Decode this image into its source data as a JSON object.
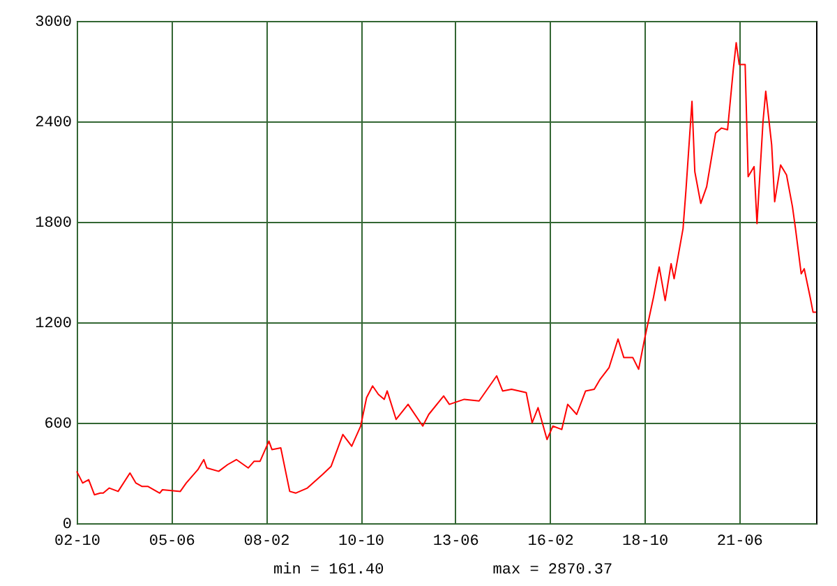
{
  "chart_data": {
    "type": "line",
    "x": [
      "2002-10",
      "2002-12",
      "2003-02",
      "2003-04",
      "2003-06",
      "2003-07",
      "2003-09",
      "2003-12",
      "2004-04",
      "2004-06",
      "2004-08",
      "2004-10",
      "2005-02",
      "2005-03",
      "2005-09",
      "2005-11",
      "2006-03",
      "2006-05",
      "2006-06",
      "2006-10",
      "2007-01",
      "2007-04",
      "2007-08",
      "2007-10",
      "2007-12",
      "2008-03",
      "2008-04",
      "2008-07",
      "2008-10",
      "2008-12",
      "2009-04",
      "2009-09",
      "2009-12",
      "2010-04",
      "2010-07",
      "2010-10",
      "2010-12",
      "2011-02",
      "2011-04",
      "2011-06",
      "2011-07",
      "2011-10",
      "2012-02",
      "2012-07",
      "2012-09",
      "2013-02",
      "2013-04",
      "2013-09",
      "2014-02",
      "2014-08",
      "2014-10",
      "2015-01",
      "2015-06",
      "2015-08",
      "2015-10",
      "2016-01",
      "2016-03",
      "2016-06",
      "2016-08",
      "2016-11",
      "2017-02",
      "2017-05",
      "2017-07",
      "2017-10",
      "2018-01",
      "2018-03",
      "2018-06",
      "2018-08",
      "2018-10",
      "2019-01",
      "2019-03",
      "2019-05",
      "2019-07",
      "2019-08",
      "2019-11",
      "2019-12",
      "2020-02",
      "2020-03",
      "2020-05",
      "2020-07",
      "2020-10",
      "2020-12",
      "2021-02",
      "2021-04",
      "2021-05",
      "2021-06",
      "2021-08",
      "2021-09",
      "2021-11",
      "2021-12",
      "2022-02",
      "2022-03",
      "2022-05",
      "2022-06",
      "2022-08",
      "2022-10",
      "2022-12",
      "2023-01",
      "2023-03",
      "2023-04",
      "2023-06",
      "2023-07",
      "2023-08"
    ],
    "series": [
      {
        "color": "#ff0000",
        "values": [
          310,
          240,
          260,
          170,
          180,
          180,
          210,
          190,
          300,
          240,
          220,
          220,
          180,
          200,
          190,
          240,
          320,
          380,
          330,
          310,
          350,
          380,
          330,
          370,
          370,
          490,
          440,
          450,
          190,
          180,
          210,
          290,
          340,
          530,
          460,
          580,
          750,
          820,
          770,
          740,
          790,
          620,
          710,
          580,
          650,
          760,
          710,
          740,
          730,
          880,
          790,
          800,
          780,
          600,
          690,
          500,
          580,
          560,
          710,
          650,
          790,
          800,
          860,
          930,
          1100,
          990,
          990,
          920,
          1100,
          1350,
          1530,
          1330,
          1550,
          1460,
          1760,
          1990,
          2520,
          2100,
          1910,
          2010,
          2330,
          2360,
          2350,
          2710,
          2870,
          2740,
          2740,
          2070,
          2130,
          1790,
          2400,
          2580,
          2260,
          1920,
          2140,
          2080,
          1890,
          1760,
          1490,
          1520,
          1350,
          1260,
          1260
        ]
      }
    ],
    "xlim": [
      "2002-10",
      "2023-08"
    ],
    "xticks": [
      {
        "value": "2002-10",
        "label": "02-10"
      },
      {
        "value": "2005-06",
        "label": "05-06"
      },
      {
        "value": "2008-02",
        "label": "08-02"
      },
      {
        "value": "2010-10",
        "label": "10-10"
      },
      {
        "value": "2013-06",
        "label": "13-06"
      },
      {
        "value": "2016-02",
        "label": "16-02"
      },
      {
        "value": "2018-10",
        "label": "18-10"
      },
      {
        "value": "2021-06",
        "label": "21-06"
      }
    ],
    "ylim": [
      0,
      3000
    ],
    "yticks": [
      0,
      600,
      1200,
      1800,
      2400,
      3000
    ],
    "grid": true,
    "marker": "none",
    "line_style": "solid",
    "annotations": [
      "min = 161.40",
      "max = 2870.37"
    ]
  }
}
